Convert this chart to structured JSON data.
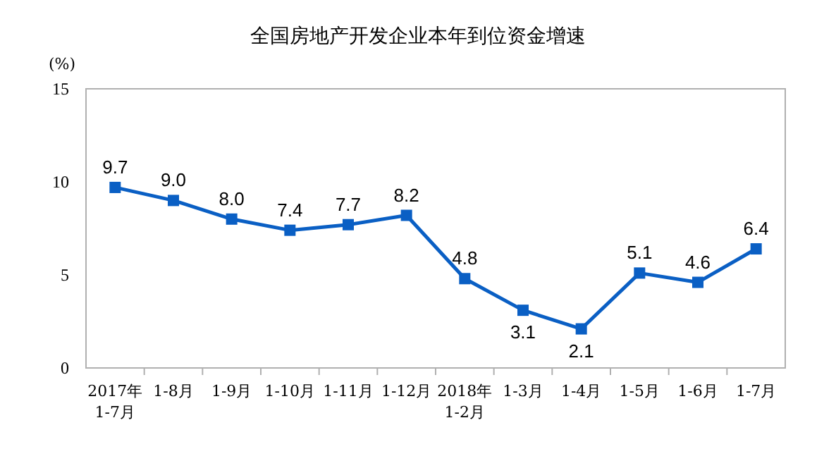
{
  "chart_data": {
    "type": "line",
    "title": "全国房地产开发企业本年到位资金增速",
    "ylabel": "(%)",
    "categories": [
      "2017年\n1-7月",
      "1-8月",
      "1-9月",
      "1-10月",
      "1-11月",
      "1-12月",
      "2018年\n1-2月",
      "1-3月",
      "1-4月",
      "1-5月",
      "1-6月",
      "1-7月"
    ],
    "series": [
      {
        "color": "#0a5fc4",
        "values": [
          9.7,
          9.0,
          8.0,
          7.4,
          7.7,
          8.2,
          4.8,
          3.1,
          2.1,
          5.1,
          4.6,
          6.4
        ],
        "value_labels": [
          "9.7",
          "9.0",
          "8.0",
          "7.4",
          "7.7",
          "8.2",
          "4.8",
          "3.1",
          "2.1",
          "5.1",
          "4.6",
          "6.4"
        ]
      }
    ],
    "ylim": [
      0,
      15
    ],
    "yticks": [
      0,
      5,
      10,
      15
    ],
    "grid": false,
    "marker": "square",
    "line_style": "solid"
  }
}
